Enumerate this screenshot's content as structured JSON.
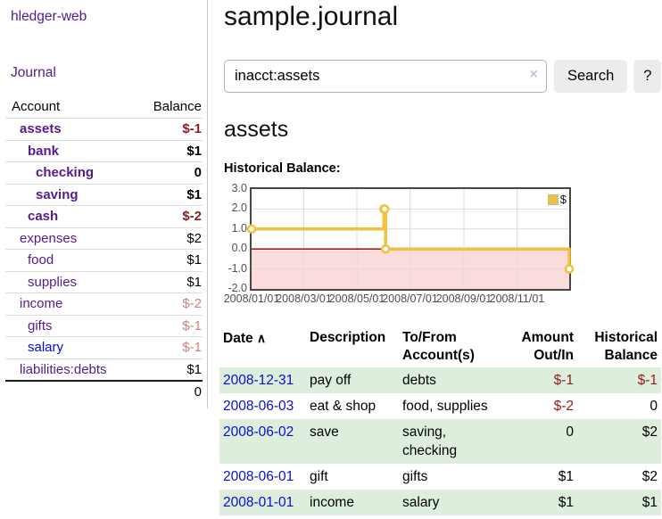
{
  "sidebar": {
    "app_title": "hledger-web",
    "journal_link": "Journal",
    "accounts_table": {
      "account_header": "Account",
      "balance_header": "Balance",
      "rows": [
        {
          "name": "assets",
          "balance": "$-1"
        },
        {
          "name": "bank",
          "balance": "$1"
        },
        {
          "name": "checking",
          "balance": "0"
        },
        {
          "name": "saving",
          "balance": "$1"
        },
        {
          "name": "cash",
          "balance": "$-2"
        },
        {
          "name": "expenses",
          "balance": "$2"
        },
        {
          "name": "food",
          "balance": "$1"
        },
        {
          "name": "supplies",
          "balance": "$1"
        },
        {
          "name": "income",
          "balance": "$-2"
        },
        {
          "name": "gifts",
          "balance": "$-1"
        },
        {
          "name": "salary",
          "balance": "$-1"
        },
        {
          "name": "liabilities:debts",
          "balance": "$1"
        }
      ],
      "total": "0"
    }
  },
  "main": {
    "title": "sample.journal",
    "search": {
      "value": "inacct:assets",
      "clear_icon": "×",
      "button_label": "Search",
      "help_label": "?"
    },
    "account_heading": "assets",
    "chart_heading": "Historical Balance:"
  },
  "chart_data": {
    "type": "line",
    "title": "Historical Balance",
    "step": true,
    "series": [
      {
        "name": "$",
        "color": "#edc240",
        "points": [
          [
            "2008-01-01",
            1
          ],
          [
            "2008-06-01",
            2
          ],
          [
            "2008-06-02",
            2
          ],
          [
            "2008-06-03",
            0
          ],
          [
            "2008-12-31",
            -1
          ]
        ]
      }
    ],
    "x_range": [
      "2008-01-01",
      "2008-12-31"
    ],
    "x_ticks": [
      "2008/01/01",
      "2008/03/01",
      "2008/05/01",
      "2008/07/01",
      "2008/09/01",
      "2008/11/01"
    ],
    "y_ticks": [
      "3.0",
      "2.0",
      "1.0",
      "0.0",
      "-1.0",
      "-2.0"
    ],
    "ylim": [
      -2,
      3
    ],
    "grid": true,
    "legend_position": "top-right",
    "negative_region_color": "#fbdcdc",
    "zero_line_color": "#8b0000",
    "grid_color": "#dcdcdc"
  },
  "register": {
    "headers": {
      "date": "Date",
      "description": "Description",
      "accounts": "To/From Account(s)",
      "amount": "Amount Out/In",
      "balance": "Historical Balance"
    },
    "sort_icon": "∧",
    "rows": [
      {
        "date": "2008-12-31",
        "description": "pay off",
        "accounts": "debts",
        "amount": "$-1",
        "balance": "$-1"
      },
      {
        "date": "2008-06-03",
        "description": "eat & shop",
        "accounts": "food, supplies",
        "amount": "$-2",
        "balance": "0"
      },
      {
        "date": "2008-06-02",
        "description": "save",
        "accounts": "saving,\nchecking",
        "amount": "0",
        "balance": "$2"
      },
      {
        "date": "2008-06-01",
        "description": "gift",
        "accounts": "gifts",
        "amount": "$1",
        "balance": "$2"
      },
      {
        "date": "2008-01-01",
        "description": "income",
        "accounts": "salary",
        "amount": "$1",
        "balance": "$1"
      }
    ]
  }
}
